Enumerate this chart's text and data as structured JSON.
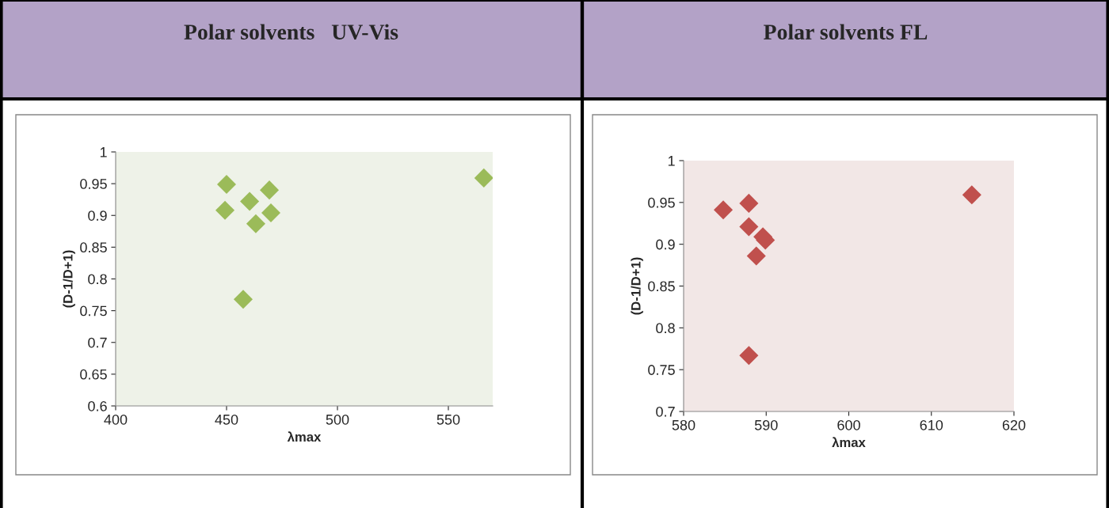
{
  "chart_data": [
    {
      "type": "scatter",
      "title": "Polar solvents   UV-Vis",
      "xlabel": "λmax",
      "ylabel": "(D-1/D+1)",
      "color": "#9bbb59",
      "marker": "diamond",
      "grid": false,
      "x": [
        450,
        449.3,
        460.4,
        469.3,
        470,
        463.2,
        457.5,
        566
      ],
      "values": [
        0.949,
        0.908,
        0.922,
        0.94,
        0.904,
        0.887,
        0.768,
        0.959
      ],
      "xlim": [
        400,
        570
      ],
      "xticks": [
        400,
        450,
        500,
        550
      ],
      "ylim": [
        0.6,
        1
      ],
      "yticks": [
        0.6,
        0.65,
        0.7,
        0.75,
        0.8,
        0.85,
        0.9,
        0.95,
        1
      ]
    },
    {
      "type": "scatter",
      "title": "Polar solvents FL",
      "xlabel": "λmax",
      "ylabel": "(D-1/D+1)",
      "color": "#c0504d",
      "marker": "diamond",
      "grid": false,
      "x": [
        584.8,
        587.9,
        587.9,
        589.9,
        589.6,
        588.8,
        587.9,
        614.9
      ],
      "values": [
        0.941,
        0.949,
        0.921,
        0.905,
        0.909,
        0.886,
        0.767,
        0.959
      ],
      "xlim": [
        580,
        620
      ],
      "xticks": [
        580,
        590,
        600,
        610,
        620
      ],
      "ylim": [
        0.7,
        1
      ],
      "yticks": [
        0.7,
        0.75,
        0.8,
        0.85,
        0.9,
        0.95,
        1
      ]
    }
  ]
}
